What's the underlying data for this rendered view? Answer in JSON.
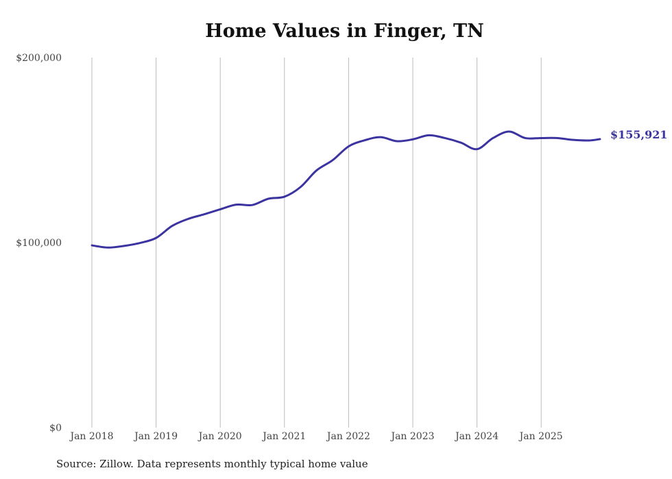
{
  "chart_data": {
    "type": "line",
    "title": "Home Values in Finger, TN",
    "source": "Source: Zillow. Data represents monthly typical home value",
    "xlabel": "",
    "ylabel": "",
    "ylim": [
      0,
      200000
    ],
    "yticks": [
      0,
      100000,
      200000
    ],
    "ytick_labels": [
      "$0",
      "$100,000",
      "$200,000"
    ],
    "xticks": [
      "Jan 2018",
      "Jan 2019",
      "Jan 2020",
      "Jan 2021",
      "Jan 2022",
      "Jan 2023",
      "Jan 2024",
      "Jan 2025"
    ],
    "grid": "vertical",
    "line_color": "#3b33a0",
    "end_label": "$155,921",
    "series": [
      {
        "name": "Typical home value",
        "x": [
          "2018-01",
          "2018-04",
          "2018-07",
          "2018-10",
          "2019-01",
          "2019-04",
          "2019-07",
          "2019-10",
          "2020-01",
          "2020-04",
          "2020-07",
          "2020-10",
          "2021-01",
          "2021-04",
          "2021-07",
          "2021-10",
          "2022-01",
          "2022-04",
          "2022-07",
          "2022-10",
          "2023-01",
          "2023-04",
          "2023-07",
          "2023-10",
          "2024-01",
          "2024-04",
          "2024-07",
          "2024-10",
          "2025-01",
          "2025-04",
          "2025-07",
          "2025-10",
          "2025-12"
        ],
        "values": [
          98500,
          97300,
          98200,
          99800,
          102500,
          109000,
          112800,
          115300,
          118000,
          120500,
          120300,
          123700,
          124800,
          130000,
          139000,
          144500,
          152000,
          155300,
          157000,
          154800,
          155800,
          158000,
          156500,
          154000,
          150500,
          156500,
          160000,
          156500,
          156500,
          156500,
          155500,
          155200,
          155921
        ]
      }
    ]
  }
}
